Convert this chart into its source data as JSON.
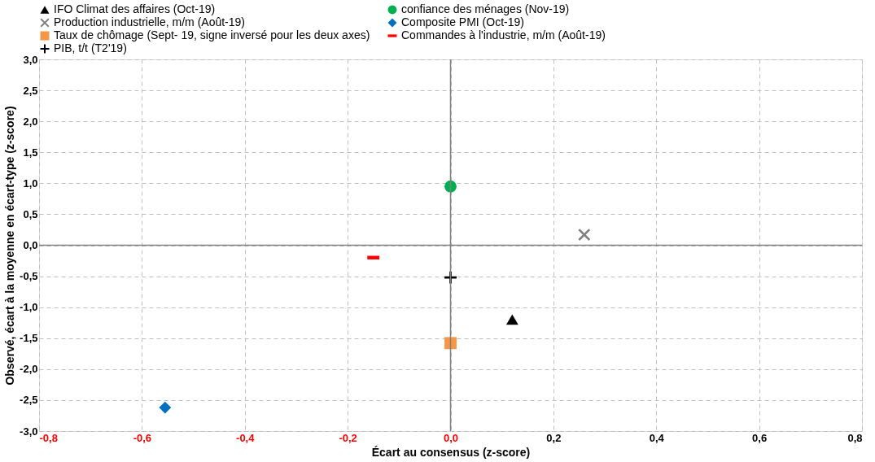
{
  "chart_data": {
    "type": "scatter",
    "xlabel": "Écart au consensus (z-score)",
    "ylabel": "Observé, écart à la moyenne en écart-type (z-score)",
    "series": [
      {
        "name": "IFO Climat des affaires (Oct-19)",
        "color": "#000000",
        "marker": "triangle",
        "x": [
          0.12
        ],
        "values": [
          -1.2
        ]
      },
      {
        "name": "confiance des ménages (Nov-19)",
        "color": "#00b050",
        "marker": "circle",
        "x": [
          0.0
        ],
        "values": [
          0.95
        ]
      },
      {
        "name": "Production industrielle, m/m (Août-19)",
        "color": "#808080",
        "marker": "x",
        "x": [
          0.26
        ],
        "values": [
          0.17
        ]
      },
      {
        "name": "Composite PMI (Oct-19)",
        "color": "#0070c0",
        "marker": "diamond",
        "x": [
          -0.555
        ],
        "values": [
          -2.62
        ]
      },
      {
        "name": "Taux de chômage (Sept- 19, signe inversé pour les deux axes)",
        "color": "#f79646",
        "marker": "square",
        "x": [
          0.0
        ],
        "values": [
          -1.58
        ]
      },
      {
        "name": "Commandes à l'industrie, m/m (Août-19)",
        "color": "#ff0000",
        "x": [
          -0.15
        ],
        "values": [
          -0.2
        ]
      },
      {
        "name": "PIB, t/t (T2'19)",
        "color": "#000000",
        "marker": "cross",
        "x": [
          0.0
        ],
        "values": [
          -0.52
        ]
      }
    ],
    "xlim": [
      -0.8,
      0.8
    ],
    "xticks": [
      {
        "value": -0.8,
        "label": "-0,8"
      },
      {
        "value": -0.6,
        "label": "-0,6"
      },
      {
        "value": -0.4,
        "label": "-0,4"
      },
      {
        "value": -0.2,
        "label": "-0,2"
      },
      {
        "value": 0,
        "label": "0,0"
      },
      {
        "value": 0.2,
        "label": "0,2"
      },
      {
        "value": 0.4,
        "label": "0,4"
      },
      {
        "value": 0.6,
        "label": "0,6"
      },
      {
        "value": 0.8,
        "label": "0,8"
      }
    ],
    "ylim": [
      -3,
      3
    ],
    "yticks": [
      {
        "value": -3,
        "label": "-3,0"
      },
      {
        "value": -2.5,
        "label": "-2,5"
      },
      {
        "value": -2,
        "label": "-2,0"
      },
      {
        "value": -1.5,
        "label": "-1,5"
      },
      {
        "value": -1,
        "label": "-1,0"
      },
      {
        "value": -0.5,
        "label": "-0,5"
      },
      {
        "value": 0,
        "label": "0,0"
      },
      {
        "value": 0.5,
        "label": "0,5"
      },
      {
        "value": 1,
        "label": "1,0"
      },
      {
        "value": 1.5,
        "label": "1,5"
      },
      {
        "value": 2,
        "label": "2,0"
      },
      {
        "value": 2.5,
        "label": "2,5"
      },
      {
        "value": 3,
        "label": "3,0"
      }
    ],
    "grid": true,
    "legend": "top"
  }
}
